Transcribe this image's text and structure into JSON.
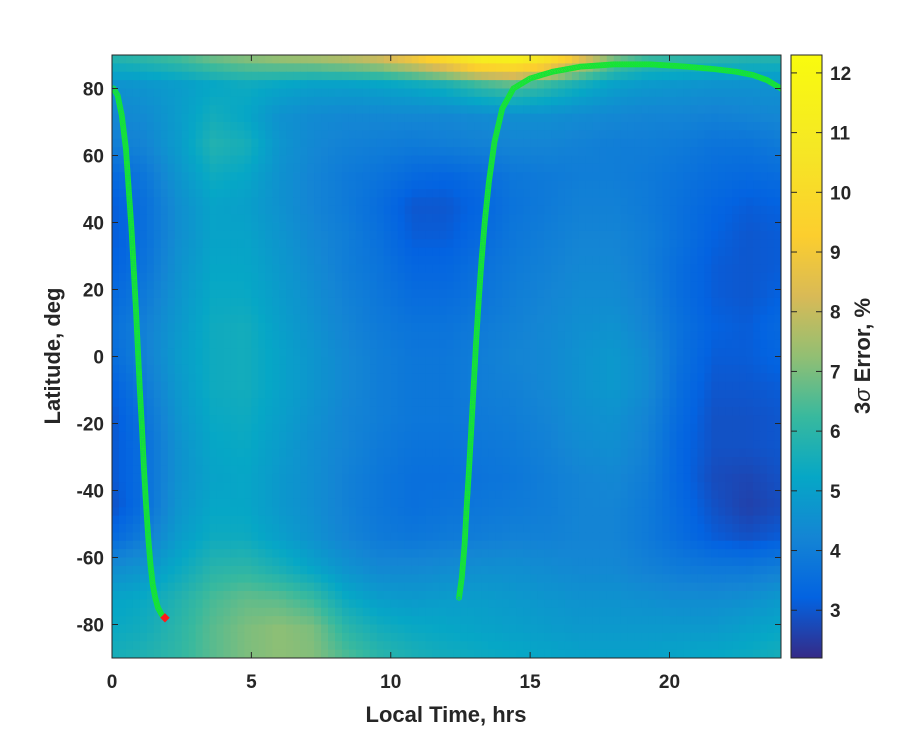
{
  "chart_data": {
    "type": "heatmap",
    "title": "",
    "xlabel": "Local Time, hrs",
    "ylabel": "Latitude, deg",
    "colorbar_label": "3σ Error, %",
    "colorbar_label_parts": {
      "number": "3",
      "symbol": "σ",
      "text": "Error, %"
    },
    "xlim": [
      0,
      24
    ],
    "ylim": [
      -90,
      90
    ],
    "clim": [
      2.2,
      12.3
    ],
    "x_ticks": [
      "0",
      "5",
      "10",
      "15",
      "20"
    ],
    "y_ticks": [
      "80",
      "60",
      "40",
      "20",
      "0",
      "-20",
      "-40",
      "-60",
      "-80"
    ],
    "colorbar_ticks": [
      "3",
      "4",
      "5",
      "6",
      "7",
      "8",
      "9",
      "10",
      "11",
      "12"
    ],
    "colormap": "parula",
    "grid": false,
    "field_x": [
      0,
      1.2,
      2.4,
      3.6,
      4.8,
      6,
      7.2,
      8.4,
      9.6,
      10.8,
      12,
      13.2,
      14.4,
      15.6,
      16.8,
      18,
      19.2,
      20.4,
      21.6,
      22.8,
      24
    ],
    "field_y": [
      90,
      81,
      72,
      63,
      54,
      45,
      36,
      27,
      18,
      9,
      0,
      -9,
      -18,
      -27,
      -36,
      -45,
      -54,
      -63,
      -72,
      -81,
      -90
    ],
    "error_grid": [
      [
        6.0,
        6.2,
        6.5,
        7.0,
        7.3,
        7.6,
        7.8,
        8.1,
        8.5,
        9.4,
        10.5,
        11.8,
        12.1,
        11.0,
        9.0,
        7.2,
        6.4,
        6.2,
        6.1,
        6.0,
        6.0
      ],
      [
        4.6,
        4.7,
        4.9,
        5.2,
        5.4,
        5.2,
        5.0,
        5.0,
        5.1,
        5.3,
        5.6,
        6.2,
        6.6,
        6.1,
        5.5,
        5.0,
        4.8,
        4.7,
        4.6,
        4.6,
        4.6
      ],
      [
        4.3,
        4.4,
        4.9,
        5.5,
        5.2,
        4.6,
        4.4,
        4.3,
        4.3,
        4.3,
        4.3,
        4.4,
        4.5,
        4.5,
        4.4,
        4.3,
        4.2,
        4.2,
        4.1,
        4.2,
        4.3
      ],
      [
        4.0,
        4.2,
        4.9,
        5.8,
        5.6,
        4.7,
        4.3,
        4.1,
        4.0,
        3.9,
        4.0,
        4.1,
        4.2,
        4.2,
        4.1,
        4.0,
        4.0,
        3.9,
        3.7,
        3.7,
        3.9
      ],
      [
        3.4,
        3.8,
        4.7,
        5.4,
        5.2,
        4.6,
        4.2,
        3.9,
        3.7,
        3.4,
        3.3,
        3.5,
        3.8,
        3.9,
        4.0,
        4.0,
        3.9,
        3.7,
        3.5,
        3.4,
        3.5
      ],
      [
        3.1,
        3.6,
        4.5,
        5.1,
        5.0,
        4.6,
        4.2,
        3.9,
        3.5,
        3.0,
        3.0,
        3.3,
        3.7,
        3.9,
        4.1,
        4.1,
        3.9,
        3.6,
        3.3,
        3.1,
        3.2
      ],
      [
        3.1,
        3.6,
        4.5,
        5.1,
        5.1,
        4.7,
        4.3,
        4.0,
        3.6,
        3.1,
        3.1,
        3.4,
        3.8,
        4.0,
        4.2,
        4.2,
        4.0,
        3.6,
        3.2,
        3.0,
        3.1
      ],
      [
        3.2,
        3.7,
        4.6,
        5.2,
        5.2,
        4.8,
        4.4,
        4.0,
        3.7,
        3.3,
        3.3,
        3.6,
        3.9,
        4.1,
        4.3,
        4.3,
        4.0,
        3.5,
        3.1,
        3.0,
        3.1
      ],
      [
        3.4,
        3.9,
        4.7,
        5.3,
        5.3,
        4.9,
        4.5,
        4.1,
        3.8,
        3.5,
        3.5,
        3.7,
        4.0,
        4.2,
        4.4,
        4.4,
        4.1,
        3.5,
        3.1,
        3.0,
        3.2
      ],
      [
        3.6,
        4.1,
        4.8,
        5.4,
        5.5,
        5.0,
        4.6,
        4.2,
        3.9,
        3.7,
        3.7,
        3.9,
        4.1,
        4.3,
        4.5,
        4.6,
        4.2,
        3.6,
        3.2,
        3.1,
        3.4
      ],
      [
        3.5,
        4.1,
        4.9,
        5.4,
        5.5,
        5.1,
        4.7,
        4.3,
        4.0,
        3.8,
        3.8,
        4.0,
        4.2,
        4.3,
        4.6,
        4.8,
        4.4,
        3.6,
        3.1,
        3.1,
        3.3
      ],
      [
        3.2,
        3.9,
        4.8,
        5.4,
        5.5,
        5.1,
        4.7,
        4.3,
        4.0,
        3.8,
        3.8,
        4.0,
        4.1,
        4.3,
        4.6,
        4.8,
        4.4,
        3.5,
        3.0,
        3.0,
        3.1
      ],
      [
        3.0,
        3.7,
        4.7,
        5.3,
        5.4,
        5.0,
        4.6,
        4.2,
        4.0,
        3.8,
        3.8,
        3.9,
        4.0,
        4.2,
        4.5,
        4.6,
        4.2,
        3.4,
        2.9,
        2.9,
        3.0
      ],
      [
        3.0,
        3.6,
        4.6,
        5.2,
        5.3,
        4.9,
        4.5,
        4.2,
        3.9,
        3.7,
        3.7,
        3.8,
        3.9,
        4.1,
        4.4,
        4.5,
        4.1,
        3.3,
        2.9,
        2.9,
        3.0
      ],
      [
        3.0,
        3.6,
        4.6,
        5.1,
        5.2,
        4.8,
        4.5,
        4.1,
        3.8,
        3.6,
        3.6,
        3.7,
        3.8,
        4.0,
        4.2,
        4.3,
        4.0,
        3.3,
        2.8,
        2.7,
        2.9
      ],
      [
        2.9,
        3.6,
        4.7,
        5.2,
        5.2,
        4.8,
        4.5,
        4.1,
        3.8,
        3.6,
        3.7,
        3.8,
        3.9,
        4.0,
        4.2,
        4.2,
        3.9,
        3.4,
        2.9,
        2.6,
        2.8
      ],
      [
        3.4,
        4.0,
        4.9,
        5.4,
        5.4,
        5.0,
        4.6,
        4.2,
        3.9,
        3.8,
        3.9,
        4.0,
        4.1,
        4.1,
        4.2,
        4.2,
        3.9,
        3.5,
        3.1,
        2.9,
        3.1
      ],
      [
        4.4,
        4.7,
        5.3,
        5.9,
        6.0,
        5.6,
        5.1,
        4.6,
        4.3,
        4.3,
        4.4,
        4.5,
        4.5,
        4.4,
        4.3,
        4.3,
        4.1,
        3.9,
        3.8,
        3.8,
        4.0
      ],
      [
        5.1,
        5.3,
        5.8,
        6.4,
        6.7,
        6.6,
        6.2,
        5.3,
        4.9,
        4.8,
        4.9,
        4.9,
        4.8,
        4.7,
        4.6,
        4.6,
        4.5,
        4.4,
        4.4,
        4.5,
        4.8
      ],
      [
        5.3,
        5.5,
        6.0,
        6.6,
        7.0,
        7.2,
        7.0,
        6.0,
        5.5,
        5.3,
        5.2,
        5.1,
        5.0,
        4.9,
        4.8,
        4.8,
        4.8,
        4.8,
        4.8,
        5.0,
        5.2
      ],
      [
        5.6,
        5.8,
        6.1,
        6.6,
        7.0,
        7.2,
        7.1,
        6.5,
        6.0,
        5.7,
        5.5,
        5.4,
        5.3,
        5.2,
        5.1,
        5.1,
        5.1,
        5.2,
        5.3,
        5.4,
        5.6
      ]
    ],
    "series": [
      {
        "type": "scatter",
        "marker": "circle",
        "color": "#16e534",
        "x": [
          0.05,
          0.2,
          0.35,
          0.5,
          0.6,
          0.7,
          0.78,
          0.86,
          0.93,
          1.0,
          1.08,
          1.15,
          1.22,
          1.3,
          1.38,
          1.46,
          1.55,
          1.65,
          1.78,
          1.9
        ],
        "y": [
          80,
          78,
          72,
          62,
          50,
          38,
          26,
          14,
          2,
          -10,
          -22,
          -34,
          -44,
          -54,
          -62,
          -68,
          -72,
          -75,
          -77,
          -78
        ]
      },
      {
        "type": "scatter",
        "marker": "circle",
        "color": "#16e534",
        "x": [
          12.45,
          12.55,
          12.65,
          12.73,
          12.82,
          12.9,
          12.98,
          13.06,
          13.15,
          13.25,
          13.37,
          13.52,
          13.72,
          14.0,
          14.4,
          15.0,
          15.8,
          16.8,
          18.0,
          19.3,
          20.5,
          21.6,
          22.4,
          23.0,
          23.5,
          24.0
        ],
        "y": [
          -72,
          -66,
          -56,
          -44,
          -32,
          -20,
          -8,
          4,
          16,
          28,
          40,
          52,
          64,
          74,
          80,
          83,
          85,
          86.5,
          87.2,
          87.2,
          86.6,
          85.8,
          85,
          84,
          82.5,
          80
        ]
      },
      {
        "type": "scatter",
        "marker": "diamond",
        "color": "#ff1a1a",
        "x": [
          1.9
        ],
        "y": [
          -78
        ]
      }
    ]
  }
}
